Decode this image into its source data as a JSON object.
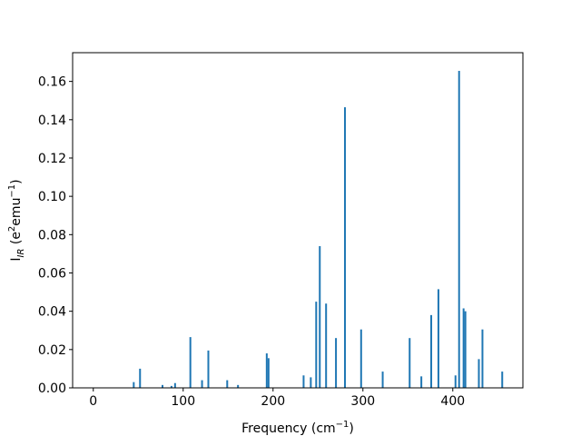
{
  "chart_data": {
    "type": "bar",
    "title": "",
    "xlabel": "Frequency (cm",
    "xlabel_sup": "−1",
    "xlabel_end": ")",
    "ylabel_main": "I",
    "ylabel_sub": "IR",
    "ylabel_rest": " (e",
    "ylabel_sup1": "2",
    "ylabel_mid": "emu",
    "ylabel_sup2": "−1",
    "ylabel_end": ")",
    "xlim": [
      -23,
      478
    ],
    "ylim": [
      0,
      0.175
    ],
    "xticks": [
      0,
      100,
      200,
      300,
      400
    ],
    "xtick_labels": [
      "0",
      "100",
      "200",
      "300",
      "400"
    ],
    "yticks": [
      0.0,
      0.02,
      0.04,
      0.06,
      0.08,
      0.1,
      0.12,
      0.14,
      0.16
    ],
    "ytick_labels": [
      "0.00",
      "0.02",
      "0.04",
      "0.06",
      "0.08",
      "0.10",
      "0.12",
      "0.14",
      "0.16"
    ],
    "bar_color": "#1f77b4",
    "grid": false,
    "points": [
      {
        "x": 45,
        "y": 0.003
      },
      {
        "x": 52,
        "y": 0.01
      },
      {
        "x": 77,
        "y": 0.0015
      },
      {
        "x": 87,
        "y": 0.001
      },
      {
        "x": 91,
        "y": 0.0025
      },
      {
        "x": 108,
        "y": 0.0265
      },
      {
        "x": 121,
        "y": 0.004
      },
      {
        "x": 128,
        "y": 0.0195
      },
      {
        "x": 149,
        "y": 0.004
      },
      {
        "x": 161,
        "y": 0.0015
      },
      {
        "x": 193,
        "y": 0.018
      },
      {
        "x": 195,
        "y": 0.0155
      },
      {
        "x": 234,
        "y": 0.0065
      },
      {
        "x": 242,
        "y": 0.0055
      },
      {
        "x": 248,
        "y": 0.045
      },
      {
        "x": 252,
        "y": 0.074
      },
      {
        "x": 259,
        "y": 0.044
      },
      {
        "x": 270,
        "y": 0.026
      },
      {
        "x": 280,
        "y": 0.1465
      },
      {
        "x": 298,
        "y": 0.0305
      },
      {
        "x": 322,
        "y": 0.0085
      },
      {
        "x": 352,
        "y": 0.026
      },
      {
        "x": 365,
        "y": 0.006
      },
      {
        "x": 376,
        "y": 0.038
      },
      {
        "x": 384,
        "y": 0.0515
      },
      {
        "x": 403,
        "y": 0.0065
      },
      {
        "x": 407,
        "y": 0.1655
      },
      {
        "x": 412,
        "y": 0.0415
      },
      {
        "x": 414,
        "y": 0.04
      },
      {
        "x": 429,
        "y": 0.015
      },
      {
        "x": 433,
        "y": 0.0305
      },
      {
        "x": 455,
        "y": 0.0085
      }
    ]
  }
}
